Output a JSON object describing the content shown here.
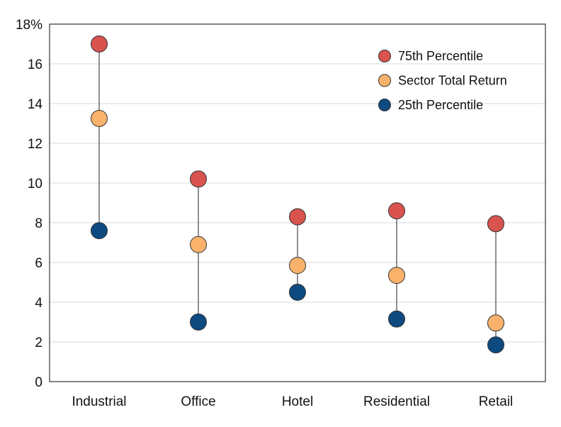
{
  "chart_data": {
    "type": "scatter",
    "categories": [
      "Industrial",
      "Office",
      "Hotel",
      "Residential",
      "Retail"
    ],
    "series": [
      {
        "name": "75th Percentile",
        "color": "#d9534f",
        "values": [
          17.0,
          10.2,
          8.3,
          8.6,
          7.95
        ]
      },
      {
        "name": "Sector Total Return",
        "color": "#f9b26b",
        "values": [
          13.25,
          6.9,
          5.85,
          5.35,
          2.95
        ]
      },
      {
        "name": "25th Percentile",
        "color": "#0d4a80",
        "values": [
          7.6,
          3.0,
          4.5,
          3.15,
          1.85
        ]
      }
    ],
    "yticks": [
      "0",
      "2",
      "4",
      "6",
      "8",
      "10",
      "12",
      "14",
      "16",
      "18%"
    ],
    "ylim": [
      0,
      18
    ],
    "grid": true,
    "legend_position": "top-right"
  }
}
